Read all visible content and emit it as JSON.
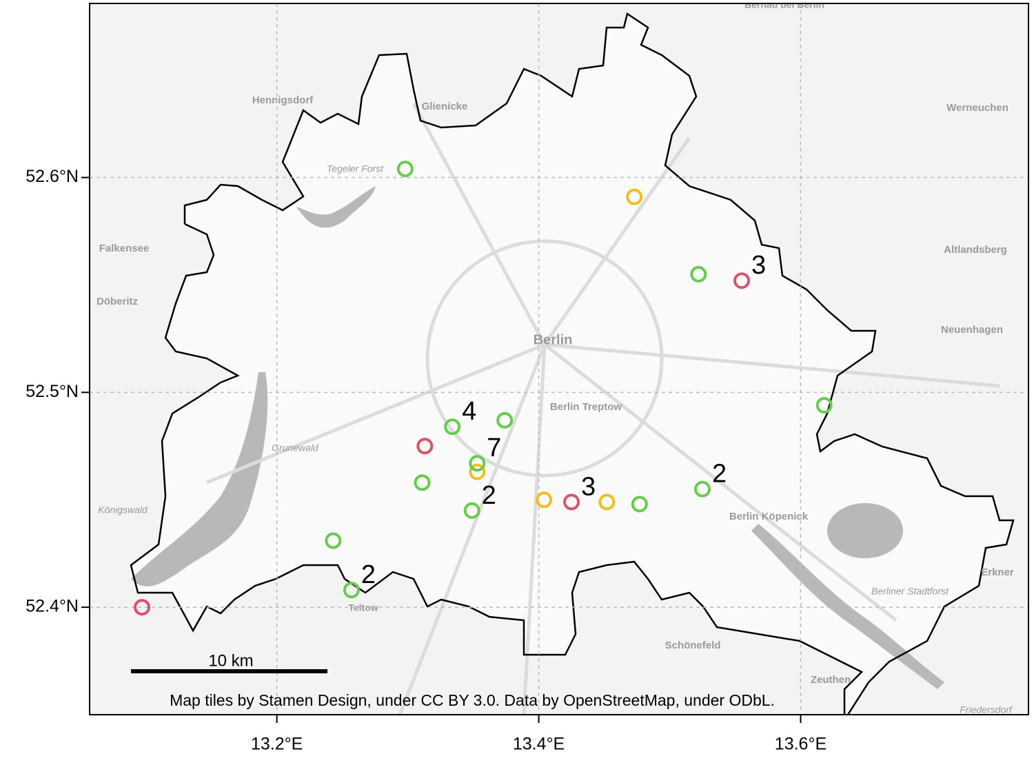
{
  "chart_data": {
    "type": "scatter",
    "xlim": [
      13.057,
      13.774
    ],
    "ylim": [
      52.35,
      52.681
    ],
    "xticks": [
      {
        "value": 13.2,
        "label": "13.2°E"
      },
      {
        "value": 13.4,
        "label": "13.4°E"
      },
      {
        "value": 13.6,
        "label": "13.6°E"
      }
    ],
    "yticks": [
      {
        "value": 52.4,
        "label": "52.4°N"
      },
      {
        "value": 52.5,
        "label": "52.5°N"
      },
      {
        "value": 52.6,
        "label": "52.6°N"
      }
    ],
    "grid": true,
    "series": [
      {
        "color": "#d9536a",
        "x": [
          13.555,
          13.313,
          13.425,
          13.097
        ],
        "y": [
          52.552,
          52.475,
          52.449,
          52.4
        ],
        "labels": [
          "3",
          null,
          "3",
          null
        ]
      },
      {
        "color": "#f0bf1f",
        "x": [
          13.473,
          13.353,
          13.404,
          13.452
        ],
        "y": [
          52.591,
          52.463,
          52.45,
          52.449
        ],
        "labels": [
          null,
          null,
          null,
          null
        ]
      },
      {
        "color": "#66cc4d",
        "x": [
          13.298,
          13.522,
          13.618,
          13.334,
          13.374,
          13.353,
          13.311,
          13.349,
          13.477,
          13.525,
          13.243,
          13.257
        ],
        "y": [
          52.604,
          52.555,
          52.494,
          52.484,
          52.487,
          52.467,
          52.458,
          52.445,
          52.448,
          52.455,
          52.431,
          52.408
        ],
        "labels": [
          null,
          null,
          null,
          "4",
          null,
          "7",
          null,
          "2",
          null,
          "2",
          null,
          "2"
        ]
      }
    ],
    "place_labels": [
      "Bernau bei Berlin",
      "Hennigsdorf",
      "Glienicke",
      "Werneuchen",
      "Tegeler Forst",
      "Falkensee",
      "Altlandsberg",
      "Döberitz",
      "Neuenhagen",
      "Berlin",
      "Berlin Treptow",
      "Grunewald",
      "Königswald",
      "Berlin Köpenick",
      "Erkner",
      "Berliner Stadtforst",
      "Teltow",
      "Schönefeld",
      "Zeuthen",
      "Friedersdorf"
    ],
    "scale_bar": "10 km",
    "attribution": "Map tiles by Stamen Design, under CC BY 3.0. Data by OpenStreetMap, under ODbL."
  }
}
